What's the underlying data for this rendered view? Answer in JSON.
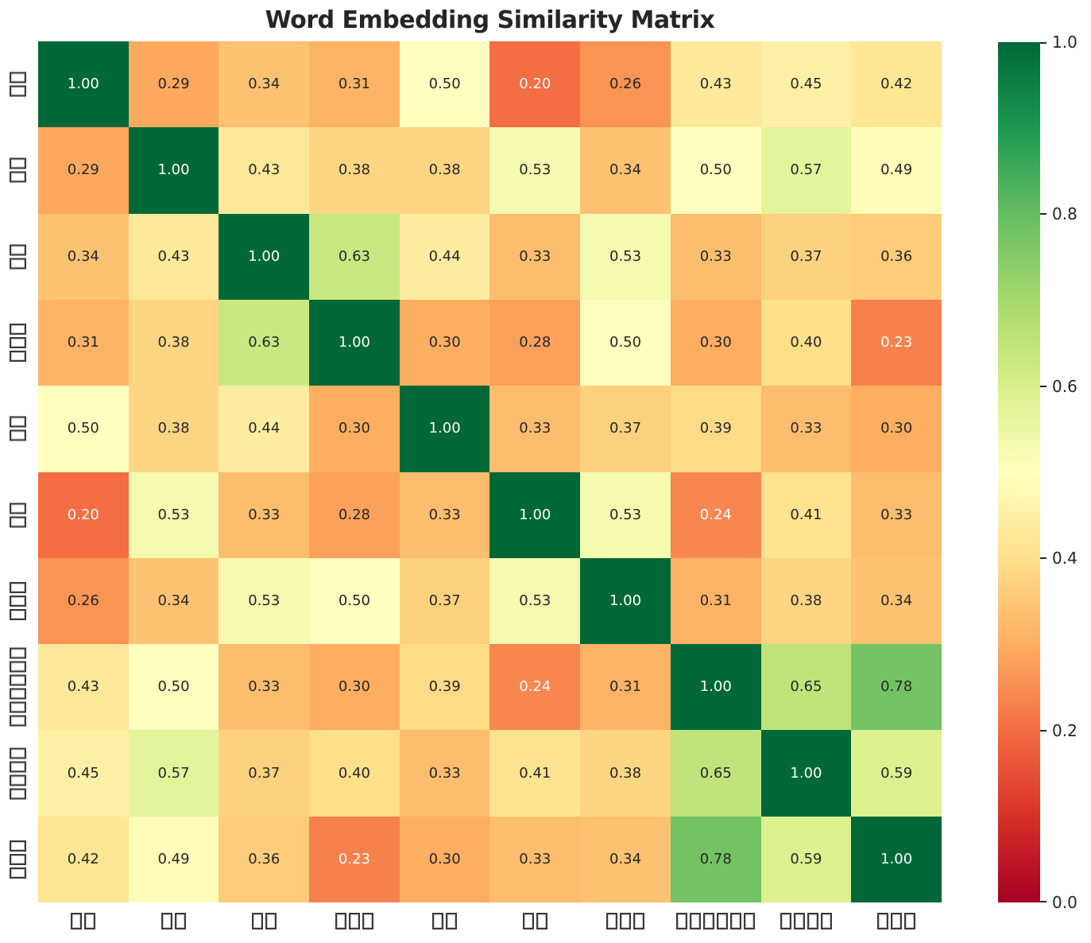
{
  "colors": {
    "background": "#ffffff",
    "title_color": "#262626",
    "annot_dark": "#262626",
    "annot_light": "#ffffff",
    "tick_label_color": "#262626",
    "tofu_border": "#3a3a3a"
  },
  "chart_data": {
    "type": "heatmap",
    "title": "Word Embedding Similarity Matrix",
    "xlabel": "",
    "ylabel": "",
    "categories": [
      "□□",
      "□□",
      "□□",
      "□□□",
      "□□",
      "□□",
      "□□□",
      "□□□□□□",
      "□□□□",
      "□□□"
    ],
    "categories_note": "x and y tick labels are rendered as missing-glyph (tofu) boxes; glyph counts per label: 2,2,2,3,2,2,3,6,4,3",
    "matrix": [
      [
        1.0,
        0.29,
        0.34,
        0.31,
        0.5,
        0.2,
        0.26,
        0.43,
        0.45,
        0.42
      ],
      [
        0.29,
        1.0,
        0.43,
        0.38,
        0.38,
        0.53,
        0.34,
        0.5,
        0.57,
        0.49
      ],
      [
        0.34,
        0.43,
        1.0,
        0.63,
        0.44,
        0.33,
        0.53,
        0.33,
        0.37,
        0.36
      ],
      [
        0.31,
        0.38,
        0.63,
        1.0,
        0.3,
        0.28,
        0.5,
        0.3,
        0.4,
        0.23
      ],
      [
        0.5,
        0.38,
        0.44,
        0.3,
        1.0,
        0.33,
        0.37,
        0.39,
        0.33,
        0.3
      ],
      [
        0.2,
        0.53,
        0.33,
        0.28,
        0.33,
        1.0,
        0.53,
        0.24,
        0.41,
        0.33
      ],
      [
        0.26,
        0.34,
        0.53,
        0.5,
        0.37,
        0.53,
        1.0,
        0.31,
        0.38,
        0.34
      ],
      [
        0.43,
        0.5,
        0.33,
        0.3,
        0.39,
        0.24,
        0.31,
        1.0,
        0.65,
        0.78
      ],
      [
        0.45,
        0.57,
        0.37,
        0.4,
        0.33,
        0.41,
        0.38,
        0.65,
        1.0,
        0.59
      ],
      [
        0.42,
        0.49,
        0.36,
        0.23,
        0.3,
        0.33,
        0.34,
        0.78,
        0.59,
        1.0
      ]
    ],
    "value_format": "0.2f",
    "vmin": 0.0,
    "vmax": 1.0,
    "colormap": "RdYlGn",
    "colormap_colors": [
      "#a50026",
      "#d73027",
      "#f46d43",
      "#fdae61",
      "#fee08b",
      "#ffffbf",
      "#d9ef8b",
      "#a6d96a",
      "#66bd63",
      "#1a9850",
      "#006837"
    ],
    "colorbar_ticks": [
      "0.0",
      "0.2",
      "0.4",
      "0.6",
      "0.8",
      "1.0"
    ],
    "legend_position": "right-colorbar",
    "grid": false
  }
}
